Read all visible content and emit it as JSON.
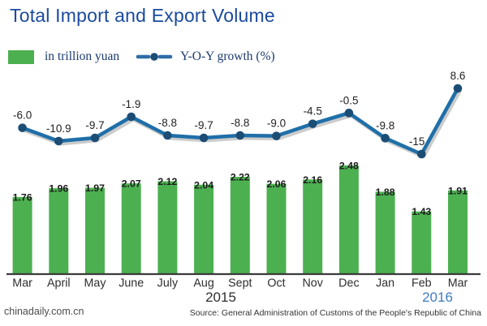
{
  "header": {
    "title": "Total Import and Export Volume"
  },
  "legend": {
    "bar_swatch_icon": "green-rect",
    "bar_label": "in trillion yuan",
    "line_icon": "line-with-dot",
    "line_label": "Y-O-Y growth (%)"
  },
  "chart_data": {
    "type": "bar+line",
    "title": "Total Import and Export Volume",
    "categories": [
      "Mar",
      "April",
      "May",
      "June",
      "July",
      "Aug",
      "Sept",
      "Oct",
      "Nov",
      "Dec",
      "Jan",
      "Feb",
      "Mar"
    ],
    "series": [
      {
        "name": "in trillion yuan",
        "type": "bar",
        "values": [
          1.76,
          1.96,
          1.97,
          2.07,
          2.12,
          2.04,
          2.22,
          2.06,
          2.16,
          2.48,
          1.88,
          1.43,
          1.91
        ]
      },
      {
        "name": "Y-O-Y growth (%)",
        "type": "line",
        "values": [
          -6.0,
          -10.9,
          -9.7,
          -1.9,
          -8.8,
          -9.7,
          -8.8,
          -9.0,
          -4.5,
          -0.5,
          -9.8,
          -15.7,
          8.6
        ]
      }
    ],
    "year_labels": [
      "2015",
      "2016"
    ],
    "xlabel": "",
    "ylabel": "",
    "bar_value_range": [
      0,
      2.48
    ],
    "line_value_range": [
      -15.7,
      8.6
    ],
    "grid": false,
    "legend_position": "top-left"
  },
  "colors": {
    "title": "#1b4a9e",
    "legend_text": "#1b3a6d",
    "bar": "#4cb050",
    "line": "#1f6fa8",
    "line_shadow": "#cccccc",
    "dot": "#1b4d75",
    "bar_label": "#1c1c1c",
    "line_label": "#222222",
    "month_label": "#2f2f2f",
    "year_2015": "#2f2f2f",
    "year_2016": "#3e7cc0",
    "axis": "#3b3b3b"
  },
  "footer": {
    "site": "chinadaily.com.cn",
    "source": "Source: General Administration of Customs of the People's Republic of China"
  }
}
